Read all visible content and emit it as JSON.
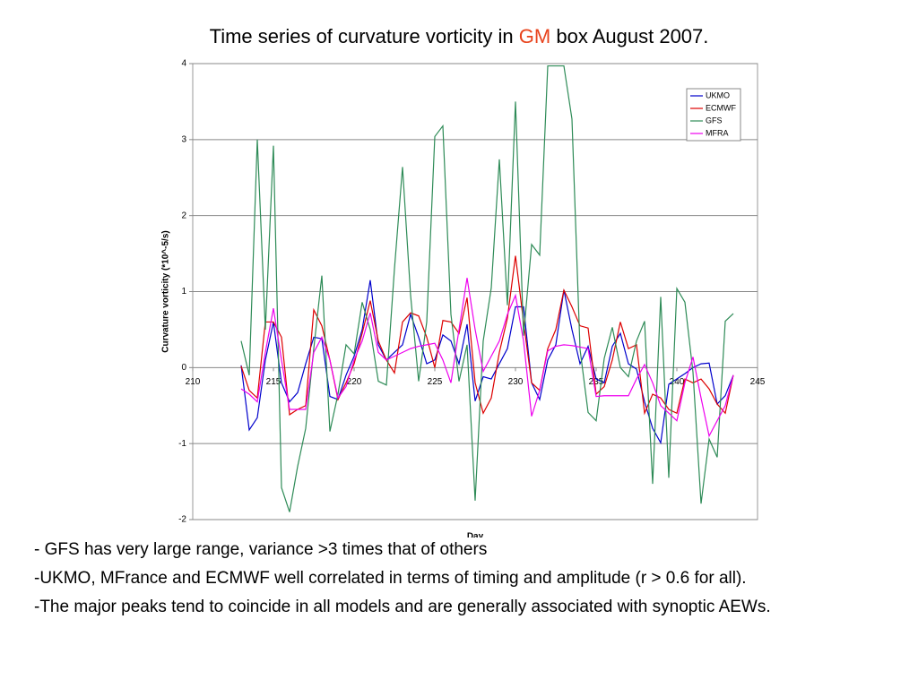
{
  "title_before": "Time series of curvature vorticity in",
  "title_highlight": "GM",
  "title_after": "box August 2007.",
  "chart_data": {
    "type": "line",
    "xlabel": "Day",
    "ylabel": "Curvature vorticity (*10^-5/s)",
    "x": [
      213,
      213.5,
      214,
      214.5,
      215,
      215.5,
      216,
      216.5,
      217,
      217.5,
      218,
      218.5,
      219,
      219.5,
      220,
      220.5,
      221,
      221.5,
      222,
      222.5,
      223,
      223.5,
      224,
      224.5,
      225,
      225.5,
      226,
      226.5,
      227,
      227.5,
      228,
      228.5,
      229,
      229.5,
      230,
      230.5,
      231,
      231.5,
      232,
      232.5,
      233,
      233.5,
      234,
      234.5,
      235,
      235.5,
      236,
      236.5,
      237,
      237.5,
      238,
      238.5,
      239,
      239.5,
      240,
      240.5,
      241,
      241.5,
      242,
      242.5,
      243,
      243.5
    ],
    "series": [
      {
        "name": "UKMO",
        "color": "#0000cc",
        "values": [
          0.03,
          -0.82,
          -0.66,
          0.1,
          0.6,
          -0.2,
          -0.45,
          -0.33,
          0.05,
          0.4,
          0.38,
          -0.38,
          -0.42,
          -0.1,
          0.15,
          0.5,
          1.15,
          0.3,
          0.1,
          0.2,
          0.3,
          0.7,
          0.4,
          0.05,
          0.1,
          0.43,
          0.35,
          0.05,
          0.57,
          -0.44,
          -0.12,
          -0.15,
          0.05,
          0.25,
          0.8,
          0.8,
          -0.2,
          -0.42,
          0.1,
          0.3,
          1.02,
          0.5,
          0.05,
          0.28,
          -0.15,
          -0.2,
          0.28,
          0.45,
          0.05,
          -0.02,
          -0.45,
          -0.8,
          -0.99,
          -0.22,
          -0.15,
          -0.08,
          0,
          0.05,
          0.06,
          -0.48,
          -0.37,
          -0.1
        ]
      },
      {
        "name": "ECMWF",
        "color": "#dd0000",
        "values": [
          0.02,
          -0.3,
          -0.4,
          0.6,
          0.6,
          0.4,
          -0.62,
          -0.55,
          -0.5,
          0.76,
          0.55,
          0.1,
          -0.42,
          -0.2,
          0.05,
          0.45,
          0.88,
          0.35,
          0.1,
          -0.07,
          0.6,
          0.72,
          0.68,
          0.4,
          0,
          0.62,
          0.6,
          0.45,
          0.92,
          -0.2,
          -0.6,
          -0.4,
          0.2,
          0.65,
          1.47,
          0.6,
          -0.2,
          -0.3,
          0.25,
          0.5,
          1.02,
          0.8,
          0.55,
          0.52,
          -0.35,
          -0.25,
          0.1,
          0.6,
          0.25,
          0.3,
          -0.6,
          -0.35,
          -0.4,
          -0.55,
          -0.6,
          -0.15,
          -0.2,
          -0.15,
          -0.28,
          -0.48,
          -0.6,
          -0.1
        ]
      },
      {
        "name": "GFS",
        "color": "#2e8b57",
        "values": [
          0.35,
          -0.1,
          3.0,
          0.5,
          2.92,
          -1.58,
          -1.9,
          -1.3,
          -0.8,
          0.25,
          1.21,
          -0.84,
          -0.35,
          0.3,
          0.18,
          0.86,
          0.5,
          -0.18,
          -0.23,
          1.3,
          2.64,
          0.95,
          -0.18,
          0.6,
          3.04,
          3.18,
          0.7,
          -0.18,
          0.3,
          -1.75,
          0.35,
          1.05,
          2.74,
          0.82,
          3.5,
          0.42,
          1.62,
          1.48,
          3.97,
          3.97,
          3.97,
          3.27,
          0.24,
          -0.59,
          -0.7,
          0.12,
          0.53,
          0,
          -0.12,
          0.35,
          0.61,
          -1.53,
          0.93,
          -1.45,
          1.04,
          0.86,
          -0.06,
          -1.79,
          -0.94,
          -1.18,
          0.61,
          0.71
        ]
      },
      {
        "name": "MFRA",
        "color": "#ee00ee",
        "values": [
          -0.28,
          -0.35,
          -0.45,
          0.2,
          0.78,
          0.1,
          -0.55,
          -0.55,
          -0.55,
          0.2,
          0.4,
          0.1,
          -0.4,
          -0.25,
          0.1,
          0.35,
          0.72,
          0.2,
          0.1,
          0.15,
          0.2,
          0.25,
          0.28,
          0.3,
          0.32,
          0.1,
          -0.2,
          0.5,
          1.18,
          0.5,
          -0.05,
          0.15,
          0.35,
          0.7,
          0.95,
          0.35,
          -0.64,
          -0.3,
          0.22,
          0.28,
          0.3,
          0.29,
          0.27,
          0.25,
          -0.38,
          -0.37,
          -0.37,
          -0.37,
          -0.37,
          -0.15,
          0.04,
          -0.2,
          -0.5,
          -0.6,
          -0.7,
          -0.2,
          0.14,
          -0.4,
          -0.9,
          -0.7,
          -0.5,
          -0.1
        ]
      }
    ],
    "xlim": [
      210,
      245
    ],
    "xticks": [
      210,
      215,
      220,
      225,
      230,
      235,
      240,
      245
    ],
    "ylim": [
      -2,
      4
    ],
    "yticks": [
      -2,
      -1,
      0,
      1,
      2,
      3,
      4
    ],
    "grid": true,
    "legend": "upper right"
  },
  "bullets": [
    "- GFS has very large range, variance >3 times that of others",
    "-UKMO, MFrance and ECMWF well correlated in terms of timing and amplitude (r > 0.6 for all).",
    "-The major peaks tend to coincide in all models and are generally associated with synoptic AEWs."
  ]
}
